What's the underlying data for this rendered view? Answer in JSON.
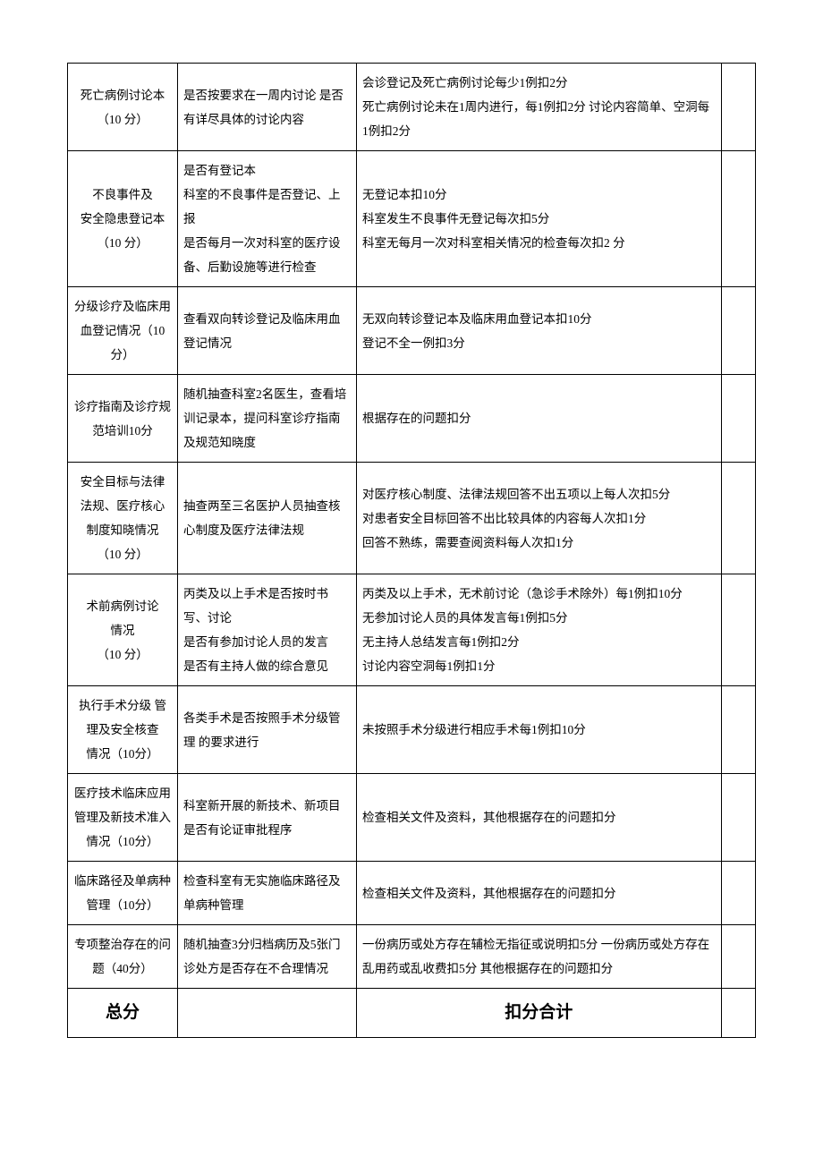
{
  "rows": [
    {
      "c1": "死亡病例讨论本\n（10 分）",
      "c2": "是否按要求在一周内讨论  是否有详尽具体的讨论内容",
      "c3": "会诊登记及死亡病例讨论每少1例扣2分\n死亡病例讨论未在1周内进行，每1例扣2分  讨论内容简单、空洞每1例扣2分"
    },
    {
      "c1": "不良事件及\n安全隐患登记本\n（10 分）",
      "c2": "是否有登记本\n科室的不良事件是否登记、上报\n是否每月一次对科室的医疗设备、后勤设施等进行检查",
      "c3": "无登记本扣10分\n科室发生不良事件无登记每次扣5分\n科室无每月一次对科室相关情况的检查每次扣2 分"
    },
    {
      "c1": "分级诊疗及临床用血登记情况（10分）",
      "c2": "查看双向转诊登记及临床用血登记情况",
      "c3": "无双向转诊登记本及临床用血登记本扣10分\n登记不全一例扣3分"
    },
    {
      "c1": "诊疗指南及诊疗规范培训10分",
      "c2": "随机抽查科室2名医生，查看培训记录本，提问科室诊疗指南及规范知晓度",
      "c3": "根据存在的问题扣分"
    },
    {
      "c1": "安全目标与法律 法规、医疗核心 制度知晓情况\n（10 分）",
      "c2": "抽查两至三名医护人员抽查核心制度及医疗法律法规",
      "c3": "对医疗核心制度、法律法规回答不出五项以上每人次扣5分\n对患者安全目标回答不出比较具体的内容每人次扣1分\n回答不熟练，需要查阅资料每人次扣1分"
    },
    {
      "c1": "术前病例讨论\n情况\n（10 分）",
      "c2": "丙类及以上手术是否按时书写、讨论\n是否有参加讨论人员的发言\n是否有主持人做的综合意见",
      "c3": "丙类及以上手术，无术前讨论（急诊手术除外）每1例扣10分\n无参加讨论人员的具体发言每1例扣5分\n无主持人总结发言每1例扣2分\n讨论内容空洞每1例扣1分"
    },
    {
      "c1": "执行手术分级 管理及安全核查\n情况（10分）",
      "c2": "各类手术是否按照手术分级管理 的要求进行",
      "c3": "未按照手术分级进行相应手术每1例扣10分"
    },
    {
      "c1": "医疗技术临床应用管理及新技术准入情况（10分）",
      "c2": "科室新开展的新技术、新项目是否有论证审批程序",
      "c3": "检查相关文件及资料，其他根据存在的问题扣分"
    },
    {
      "c1": "临床路径及单病种管理（10分）",
      "c2": "检查科室有无实施临床路径及单病种管理",
      "c3": "检查相关文件及资料，其他根据存在的问题扣分"
    },
    {
      "c1": "专项整治存在的问题（40分）",
      "c2": "随机抽查3分归档病历及5张门诊处方是否存在不合理情况",
      "c3": "一份病历或处方存在辅检无指征或说明扣5分  一份病历或处方存在乱用药或乱收费扣5分  其他根据存在的问题扣分"
    }
  ],
  "totalRow": {
    "label": "总分",
    "centerLabel": "扣分合计"
  },
  "styling": {
    "border_color": "#000000",
    "background_color": "#ffffff",
    "font_family": "SimSun",
    "base_font_size": 13.5,
    "total_font_size": 19,
    "line_height": 2.0
  }
}
